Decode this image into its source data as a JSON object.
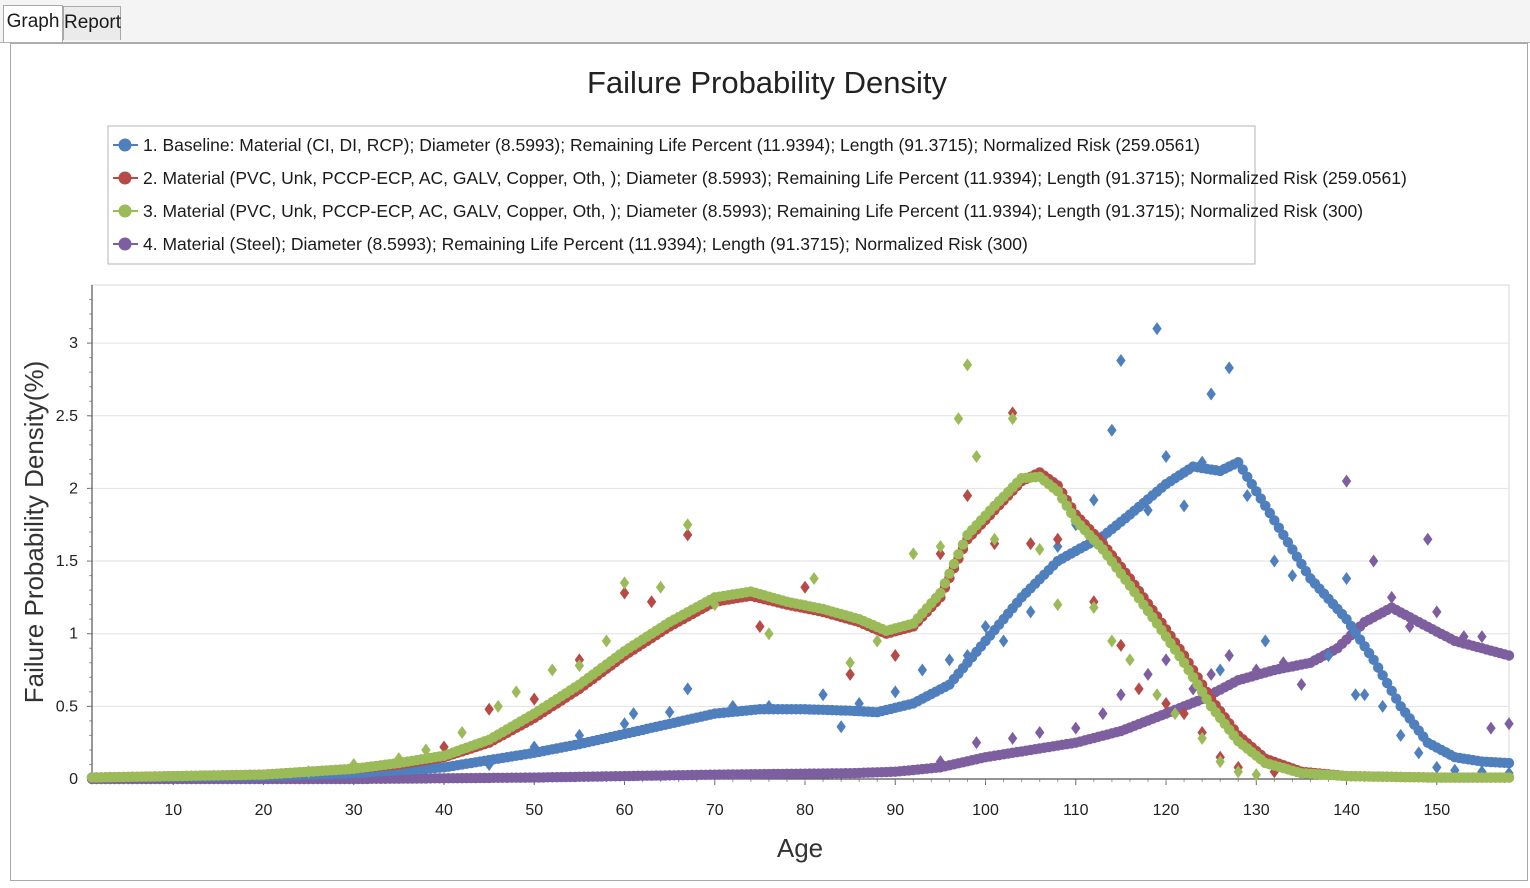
{
  "tabs": [
    {
      "label": "Graph",
      "active": true
    },
    {
      "label": "Report",
      "active": false
    }
  ],
  "chart_data": {
    "type": "scatter",
    "title": "Failure Probability Density",
    "xlabel": "Age",
    "ylabel": "Failure Probability Density(%)",
    "xlim": [
      1,
      158
    ],
    "ylim": [
      0,
      3.4
    ],
    "xticks": [
      "10",
      "20",
      "30",
      "40",
      "50",
      "60",
      "70",
      "80",
      "90",
      "100",
      "110",
      "120",
      "130",
      "140",
      "150"
    ],
    "yticks": [
      "0",
      "0.5",
      "1",
      "1.5",
      "2",
      "2.5",
      "3"
    ],
    "grid": true,
    "legend_position": "top-left",
    "series": [
      {
        "name": "1. Baseline: Material (CI, DI, RCP); Diameter (8.5993); Remaining Life Percent (11.9394); Length (91.3715); Normalized Risk (259.0561)",
        "color": "#4f7fbd",
        "curve": [
          [
            1,
            0.01
          ],
          [
            20,
            0.02
          ],
          [
            30,
            0.04
          ],
          [
            40,
            0.08
          ],
          [
            45,
            0.13
          ],
          [
            50,
            0.18
          ],
          [
            55,
            0.24
          ],
          [
            60,
            0.31
          ],
          [
            65,
            0.38
          ],
          [
            70,
            0.45
          ],
          [
            75,
            0.48
          ],
          [
            80,
            0.48
          ],
          [
            85,
            0.47
          ],
          [
            88,
            0.46
          ],
          [
            92,
            0.52
          ],
          [
            96,
            0.65
          ],
          [
            100,
            0.95
          ],
          [
            104,
            1.25
          ],
          [
            108,
            1.5
          ],
          [
            110,
            1.57
          ],
          [
            113,
            1.67
          ],
          [
            116,
            1.82
          ],
          [
            120,
            2.03
          ],
          [
            123,
            2.15
          ],
          [
            126,
            2.12
          ],
          [
            128,
            2.18
          ],
          [
            130,
            1.98
          ],
          [
            133,
            1.68
          ],
          [
            136,
            1.38
          ],
          [
            140,
            1.1
          ],
          [
            143,
            0.82
          ],
          [
            146,
            0.5
          ],
          [
            149,
            0.25
          ],
          [
            152,
            0.15
          ],
          [
            155,
            0.12
          ],
          [
            158,
            0.11
          ]
        ],
        "points": [
          [
            45,
            0.1
          ],
          [
            50,
            0.22
          ],
          [
            55,
            0.3
          ],
          [
            60,
            0.38
          ],
          [
            61,
            0.45
          ],
          [
            65,
            0.46
          ],
          [
            67,
            0.62
          ],
          [
            72,
            0.5
          ],
          [
            76,
            0.5
          ],
          [
            82,
            0.58
          ],
          [
            84,
            0.36
          ],
          [
            86,
            0.52
          ],
          [
            90,
            0.6
          ],
          [
            93,
            0.75
          ],
          [
            96,
            0.82
          ],
          [
            98,
            0.85
          ],
          [
            100,
            1.05
          ],
          [
            102,
            0.95
          ],
          [
            105,
            1.15
          ],
          [
            108,
            1.6
          ],
          [
            110,
            1.75
          ],
          [
            112,
            1.92
          ],
          [
            114,
            2.4
          ],
          [
            115,
            2.88
          ],
          [
            118,
            1.85
          ],
          [
            119,
            3.1
          ],
          [
            120,
            2.22
          ],
          [
            122,
            1.88
          ],
          [
            124,
            2.18
          ],
          [
            125,
            2.65
          ],
          [
            126,
            0.75
          ],
          [
            127,
            2.83
          ],
          [
            129,
            1.95
          ],
          [
            131,
            0.95
          ],
          [
            132,
            1.5
          ],
          [
            134,
            1.4
          ],
          [
            136,
            1.38
          ],
          [
            138,
            0.85
          ],
          [
            140,
            1.38
          ],
          [
            141,
            0.58
          ],
          [
            142,
            0.58
          ],
          [
            144,
            0.5
          ],
          [
            146,
            0.3
          ],
          [
            148,
            0.18
          ],
          [
            150,
            0.08
          ],
          [
            152,
            0.06
          ],
          [
            155,
            0.05
          ],
          [
            158,
            0.04
          ]
        ]
      },
      {
        "name": "2. Material (PVC, Unk, PCCP-ECP, AC, GALV, Copper, Oth, ); Diameter (8.5993); Remaining Life Percent (11.9394); Length (91.3715); Normalized Risk (259.0561)",
        "color": "#b54a47",
        "curve": [
          [
            1,
            0.01
          ],
          [
            20,
            0.03
          ],
          [
            30,
            0.07
          ],
          [
            35,
            0.1
          ],
          [
            40,
            0.15
          ],
          [
            45,
            0.25
          ],
          [
            50,
            0.42
          ],
          [
            55,
            0.62
          ],
          [
            60,
            0.85
          ],
          [
            65,
            1.05
          ],
          [
            70,
            1.22
          ],
          [
            74,
            1.26
          ],
          [
            78,
            1.2
          ],
          [
            82,
            1.15
          ],
          [
            86,
            1.08
          ],
          [
            89,
            1.0
          ],
          [
            92,
            1.05
          ],
          [
            95,
            1.25
          ],
          [
            98,
            1.65
          ],
          [
            101,
            1.85
          ],
          [
            104,
            2.05
          ],
          [
            106,
            2.11
          ],
          [
            108,
            2.02
          ],
          [
            110,
            1.82
          ],
          [
            113,
            1.62
          ],
          [
            116,
            1.38
          ],
          [
            119,
            1.12
          ],
          [
            122,
            0.85
          ],
          [
            125,
            0.55
          ],
          [
            128,
            0.3
          ],
          [
            131,
            0.14
          ],
          [
            135,
            0.05
          ],
          [
            140,
            0.02
          ],
          [
            150,
            0.01
          ],
          [
            158,
            0.01
          ]
        ],
        "points": [
          [
            35,
            0.12
          ],
          [
            40,
            0.22
          ],
          [
            45,
            0.48
          ],
          [
            50,
            0.55
          ],
          [
            55,
            0.82
          ],
          [
            60,
            1.28
          ],
          [
            63,
            1.22
          ],
          [
            67,
            1.68
          ],
          [
            75,
            1.05
          ],
          [
            80,
            1.32
          ],
          [
            85,
            0.72
          ],
          [
            90,
            0.85
          ],
          [
            95,
            1.55
          ],
          [
            98,
            1.95
          ],
          [
            101,
            1.62
          ],
          [
            103,
            2.52
          ],
          [
            105,
            1.62
          ],
          [
            108,
            1.65
          ],
          [
            112,
            1.22
          ],
          [
            115,
            0.92
          ],
          [
            117,
            0.62
          ],
          [
            120,
            0.52
          ],
          [
            122,
            0.45
          ],
          [
            124,
            0.32
          ],
          [
            126,
            0.15
          ],
          [
            128,
            0.08
          ],
          [
            132,
            0.05
          ]
        ]
      },
      {
        "name": "3. Material (PVC, Unk, PCCP-ECP, AC, GALV, Copper, Oth, ); Diameter (8.5993); Remaining Life Percent (11.9394); Length (91.3715); Normalized Risk (300)",
        "color": "#9bbb59",
        "curve": [
          [
            1,
            0.01
          ],
          [
            20,
            0.03
          ],
          [
            30,
            0.07
          ],
          [
            35,
            0.11
          ],
          [
            40,
            0.16
          ],
          [
            45,
            0.27
          ],
          [
            50,
            0.45
          ],
          [
            55,
            0.65
          ],
          [
            60,
            0.88
          ],
          [
            65,
            1.08
          ],
          [
            70,
            1.25
          ],
          [
            74,
            1.29
          ],
          [
            78,
            1.22
          ],
          [
            82,
            1.17
          ],
          [
            86,
            1.1
          ],
          [
            89,
            1.02
          ],
          [
            92,
            1.07
          ],
          [
            95,
            1.28
          ],
          [
            98,
            1.68
          ],
          [
            101,
            1.88
          ],
          [
            104,
            2.07
          ],
          [
            106,
            2.08
          ],
          [
            108,
            1.98
          ],
          [
            110,
            1.78
          ],
          [
            113,
            1.58
          ],
          [
            116,
            1.33
          ],
          [
            119,
            1.07
          ],
          [
            122,
            0.8
          ],
          [
            125,
            0.5
          ],
          [
            128,
            0.26
          ],
          [
            131,
            0.11
          ],
          [
            135,
            0.04
          ],
          [
            140,
            0.02
          ],
          [
            150,
            0.01
          ],
          [
            158,
            0.01
          ]
        ],
        "points": [
          [
            25,
            0.05
          ],
          [
            30,
            0.1
          ],
          [
            35,
            0.14
          ],
          [
            38,
            0.2
          ],
          [
            42,
            0.32
          ],
          [
            46,
            0.5
          ],
          [
            48,
            0.6
          ],
          [
            52,
            0.75
          ],
          [
            55,
            0.78
          ],
          [
            58,
            0.95
          ],
          [
            60,
            1.35
          ],
          [
            64,
            1.32
          ],
          [
            67,
            1.75
          ],
          [
            70,
            1.2
          ],
          [
            76,
            1.0
          ],
          [
            81,
            1.38
          ],
          [
            85,
            0.8
          ],
          [
            88,
            0.95
          ],
          [
            92,
            1.55
          ],
          [
            95,
            1.6
          ],
          [
            97,
            2.48
          ],
          [
            98,
            2.85
          ],
          [
            99,
            2.22
          ],
          [
            101,
            1.65
          ],
          [
            103,
            2.48
          ],
          [
            106,
            1.58
          ],
          [
            108,
            1.2
          ],
          [
            112,
            1.18
          ],
          [
            114,
            0.95
          ],
          [
            116,
            0.82
          ],
          [
            119,
            0.58
          ],
          [
            121,
            0.45
          ],
          [
            124,
            0.28
          ],
          [
            126,
            0.12
          ],
          [
            128,
            0.05
          ],
          [
            130,
            0.03
          ]
        ]
      },
      {
        "name": "4. Material (Steel); Diameter (8.5993); Remaining Life Percent (11.9394); Length (91.3715); Normalized Risk (300)",
        "color": "#7d5fa0",
        "curve": [
          [
            1,
            0.0
          ],
          [
            30,
            0.0
          ],
          [
            50,
            0.01
          ],
          [
            70,
            0.03
          ],
          [
            85,
            0.04
          ],
          [
            90,
            0.05
          ],
          [
            95,
            0.08
          ],
          [
            100,
            0.15
          ],
          [
            105,
            0.2
          ],
          [
            110,
            0.25
          ],
          [
            115,
            0.33
          ],
          [
            120,
            0.45
          ],
          [
            124,
            0.55
          ],
          [
            128,
            0.68
          ],
          [
            132,
            0.75
          ],
          [
            136,
            0.8
          ],
          [
            139,
            0.9
          ],
          [
            142,
            1.08
          ],
          [
            145,
            1.18
          ],
          [
            148,
            1.08
          ],
          [
            152,
            0.95
          ],
          [
            155,
            0.9
          ],
          [
            158,
            0.85
          ]
        ],
        "points": [
          [
            95,
            0.12
          ],
          [
            99,
            0.25
          ],
          [
            103,
            0.28
          ],
          [
            106,
            0.32
          ],
          [
            110,
            0.35
          ],
          [
            113,
            0.45
          ],
          [
            115,
            0.58
          ],
          [
            118,
            0.72
          ],
          [
            120,
            0.82
          ],
          [
            123,
            0.62
          ],
          [
            125,
            0.72
          ],
          [
            127,
            0.85
          ],
          [
            130,
            0.75
          ],
          [
            133,
            0.8
          ],
          [
            135,
            0.65
          ],
          [
            138,
            0.85
          ],
          [
            140,
            2.05
          ],
          [
            143,
            1.5
          ],
          [
            145,
            1.25
          ],
          [
            147,
            1.05
          ],
          [
            149,
            1.65
          ],
          [
            150,
            1.15
          ],
          [
            153,
            0.98
          ],
          [
            155,
            0.98
          ],
          [
            156,
            0.35
          ],
          [
            158,
            0.38
          ]
        ]
      }
    ]
  }
}
